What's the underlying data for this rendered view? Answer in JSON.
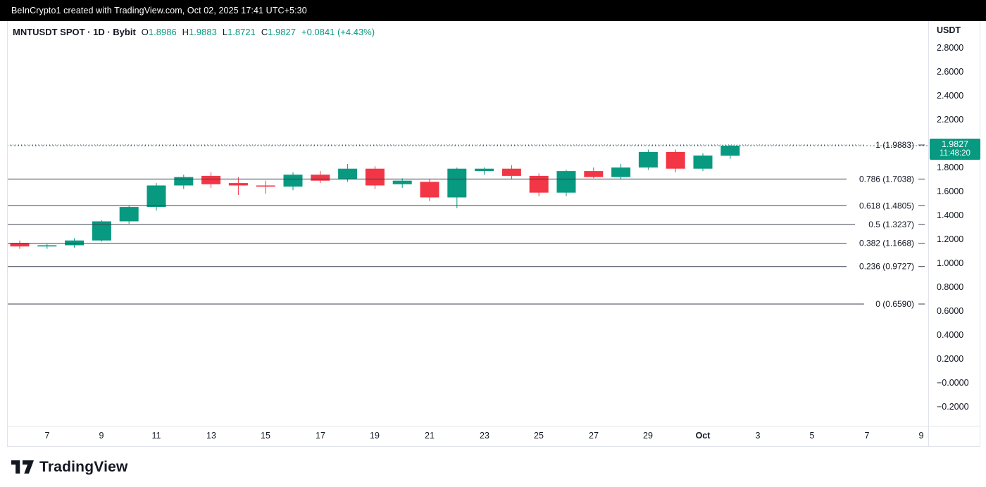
{
  "top_bar": {
    "text": "BeInCrypto1 created with TradingView.com, Oct 02, 2025 17:41 UTC+5:30"
  },
  "header": {
    "symbol": "MNTUSDT SPOT · 1D · Bybit",
    "open_label": "O",
    "open": "1.8986",
    "high_label": "H",
    "high": "1.9883",
    "low_label": "L",
    "low": "1.8721",
    "close_label": "C",
    "close": "1.9827",
    "change": "+0.0841 (+4.43%)"
  },
  "price_scale": {
    "currency": "USDT",
    "ticks": [
      {
        "label": "2.8000",
        "value": 2.8
      },
      {
        "label": "2.6000",
        "value": 2.6
      },
      {
        "label": "2.4000",
        "value": 2.4
      },
      {
        "label": "2.2000",
        "value": 2.2
      },
      {
        "label": "1.8000",
        "value": 1.8
      },
      {
        "label": "1.6000",
        "value": 1.6
      },
      {
        "label": "1.4000",
        "value": 1.4
      },
      {
        "label": "1.2000",
        "value": 1.2
      },
      {
        "label": "1.0000",
        "value": 1.0
      },
      {
        "label": "0.8000",
        "value": 0.8
      },
      {
        "label": "0.6000",
        "value": 0.6
      },
      {
        "label": "0.4000",
        "value": 0.4
      },
      {
        "label": "0.2000",
        "value": 0.2
      },
      {
        "label": "−0.0000",
        "value": 0.0
      },
      {
        "label": "−0.2000",
        "value": -0.2
      }
    ],
    "last_price_label": {
      "price": "1.9827",
      "countdown": "11:48:20",
      "value": 1.9827
    }
  },
  "time_axis": {
    "ticks": [
      {
        "label": "7",
        "index": 1,
        "bold": false
      },
      {
        "label": "9",
        "index": 3,
        "bold": false
      },
      {
        "label": "11",
        "index": 5,
        "bold": false
      },
      {
        "label": "13",
        "index": 7,
        "bold": false
      },
      {
        "label": "15",
        "index": 9,
        "bold": false
      },
      {
        "label": "17",
        "index": 11,
        "bold": false
      },
      {
        "label": "19",
        "index": 13,
        "bold": false
      },
      {
        "label": "21",
        "index": 15,
        "bold": false
      },
      {
        "label": "23",
        "index": 17,
        "bold": false
      },
      {
        "label": "25",
        "index": 19,
        "bold": false
      },
      {
        "label": "27",
        "index": 21,
        "bold": false
      },
      {
        "label": "29",
        "index": 23,
        "bold": false
      },
      {
        "label": "Oct",
        "index": 25,
        "bold": true
      },
      {
        "label": "3",
        "index": 27,
        "bold": false
      },
      {
        "label": "5",
        "index": 29,
        "bold": false
      },
      {
        "label": "7",
        "index": 31,
        "bold": false
      },
      {
        "label": "9",
        "index": 33,
        "bold": false
      }
    ]
  },
  "footer": {
    "brand": "TradingView"
  },
  "colors": {
    "up": "#089981",
    "down": "#f23645",
    "text_dark": "#131722",
    "fib_line": "#3c4250",
    "topbar_bg": "#000000"
  },
  "chart_data": {
    "type": "candlestick",
    "title": "MNTUSDT SPOT · 1D · Bybit",
    "interval": "1D",
    "exchange": "Bybit",
    "ylabel": "USDT",
    "ylim": [
      -0.359,
      3.024
    ],
    "grid": false,
    "last_price": 1.9827,
    "candles": [
      {
        "date": "Sep 6",
        "o": 1.17,
        "h": 1.19,
        "l": 1.12,
        "c": 1.14
      },
      {
        "date": "Sep 7",
        "o": 1.14,
        "h": 1.16,
        "l": 1.12,
        "c": 1.15
      },
      {
        "date": "Sep 8",
        "o": 1.15,
        "h": 1.21,
        "l": 1.13,
        "c": 1.19
      },
      {
        "date": "Sep 9",
        "o": 1.19,
        "h": 1.36,
        "l": 1.18,
        "c": 1.35
      },
      {
        "date": "Sep 10",
        "o": 1.35,
        "h": 1.48,
        "l": 1.33,
        "c": 1.47
      },
      {
        "date": "Sep 11",
        "o": 1.47,
        "h": 1.67,
        "l": 1.44,
        "c": 1.65
      },
      {
        "date": "Sep 12",
        "o": 1.65,
        "h": 1.74,
        "l": 1.62,
        "c": 1.72
      },
      {
        "date": "Sep 13",
        "o": 1.73,
        "h": 1.76,
        "l": 1.63,
        "c": 1.66
      },
      {
        "date": "Sep 14",
        "o": 1.67,
        "h": 1.72,
        "l": 1.57,
        "c": 1.65
      },
      {
        "date": "Sep 15",
        "o": 1.65,
        "h": 1.69,
        "l": 1.58,
        "c": 1.64
      },
      {
        "date": "Sep 16",
        "o": 1.64,
        "h": 1.76,
        "l": 1.61,
        "c": 1.74
      },
      {
        "date": "Sep 17",
        "o": 1.74,
        "h": 1.77,
        "l": 1.67,
        "c": 1.69
      },
      {
        "date": "Sep 18",
        "o": 1.7,
        "h": 1.83,
        "l": 1.68,
        "c": 1.79
      },
      {
        "date": "Sep 19",
        "o": 1.79,
        "h": 1.81,
        "l": 1.62,
        "c": 1.65
      },
      {
        "date": "Sep 20",
        "o": 1.66,
        "h": 1.71,
        "l": 1.63,
        "c": 1.69
      },
      {
        "date": "Sep 21",
        "o": 1.68,
        "h": 1.7,
        "l": 1.52,
        "c": 1.55
      },
      {
        "date": "Sep 22",
        "o": 1.55,
        "h": 1.8,
        "l": 1.46,
        "c": 1.79
      },
      {
        "date": "Sep 23",
        "o": 1.77,
        "h": 1.8,
        "l": 1.74,
        "c": 1.79
      },
      {
        "date": "Sep 24",
        "o": 1.79,
        "h": 1.82,
        "l": 1.7,
        "c": 1.73
      },
      {
        "date": "Sep 25",
        "o": 1.73,
        "h": 1.75,
        "l": 1.56,
        "c": 1.59
      },
      {
        "date": "Sep 26",
        "o": 1.59,
        "h": 1.78,
        "l": 1.56,
        "c": 1.77
      },
      {
        "date": "Sep 27",
        "o": 1.77,
        "h": 1.8,
        "l": 1.71,
        "c": 1.72
      },
      {
        "date": "Sep 28",
        "o": 1.72,
        "h": 1.83,
        "l": 1.7,
        "c": 1.8
      },
      {
        "date": "Sep 29",
        "o": 1.8,
        "h": 1.95,
        "l": 1.78,
        "c": 1.93
      },
      {
        "date": "Sep 30",
        "o": 1.93,
        "h": 1.95,
        "l": 1.76,
        "c": 1.79
      },
      {
        "date": "Oct 1",
        "o": 1.79,
        "h": 1.92,
        "l": 1.77,
        "c": 1.9
      },
      {
        "date": "Oct 2",
        "o": 1.8986,
        "h": 1.9883,
        "l": 1.8721,
        "c": 1.9827
      }
    ],
    "fib_retracement": {
      "levels": [
        {
          "level": 1,
          "price": 1.9883,
          "label": "1 (1.9883)",
          "style": "dotted"
        },
        {
          "level": 0.786,
          "price": 1.7038,
          "label": "0.786 (1.7038)",
          "style": "solid"
        },
        {
          "level": 0.618,
          "price": 1.4805,
          "label": "0.618 (1.4805)",
          "style": "solid"
        },
        {
          "level": 0.5,
          "price": 1.3237,
          "label": "0.5 (1.3237)",
          "style": "solid"
        },
        {
          "level": 0.382,
          "price": 1.1668,
          "label": "0.382 (1.1668)",
          "style": "solid"
        },
        {
          "level": 0.236,
          "price": 0.9727,
          "label": "0.236 (0.9727)",
          "style": "solid"
        },
        {
          "level": 0,
          "price": 0.659,
          "label": "0 (0.6590)",
          "style": "solid"
        }
      ]
    }
  }
}
